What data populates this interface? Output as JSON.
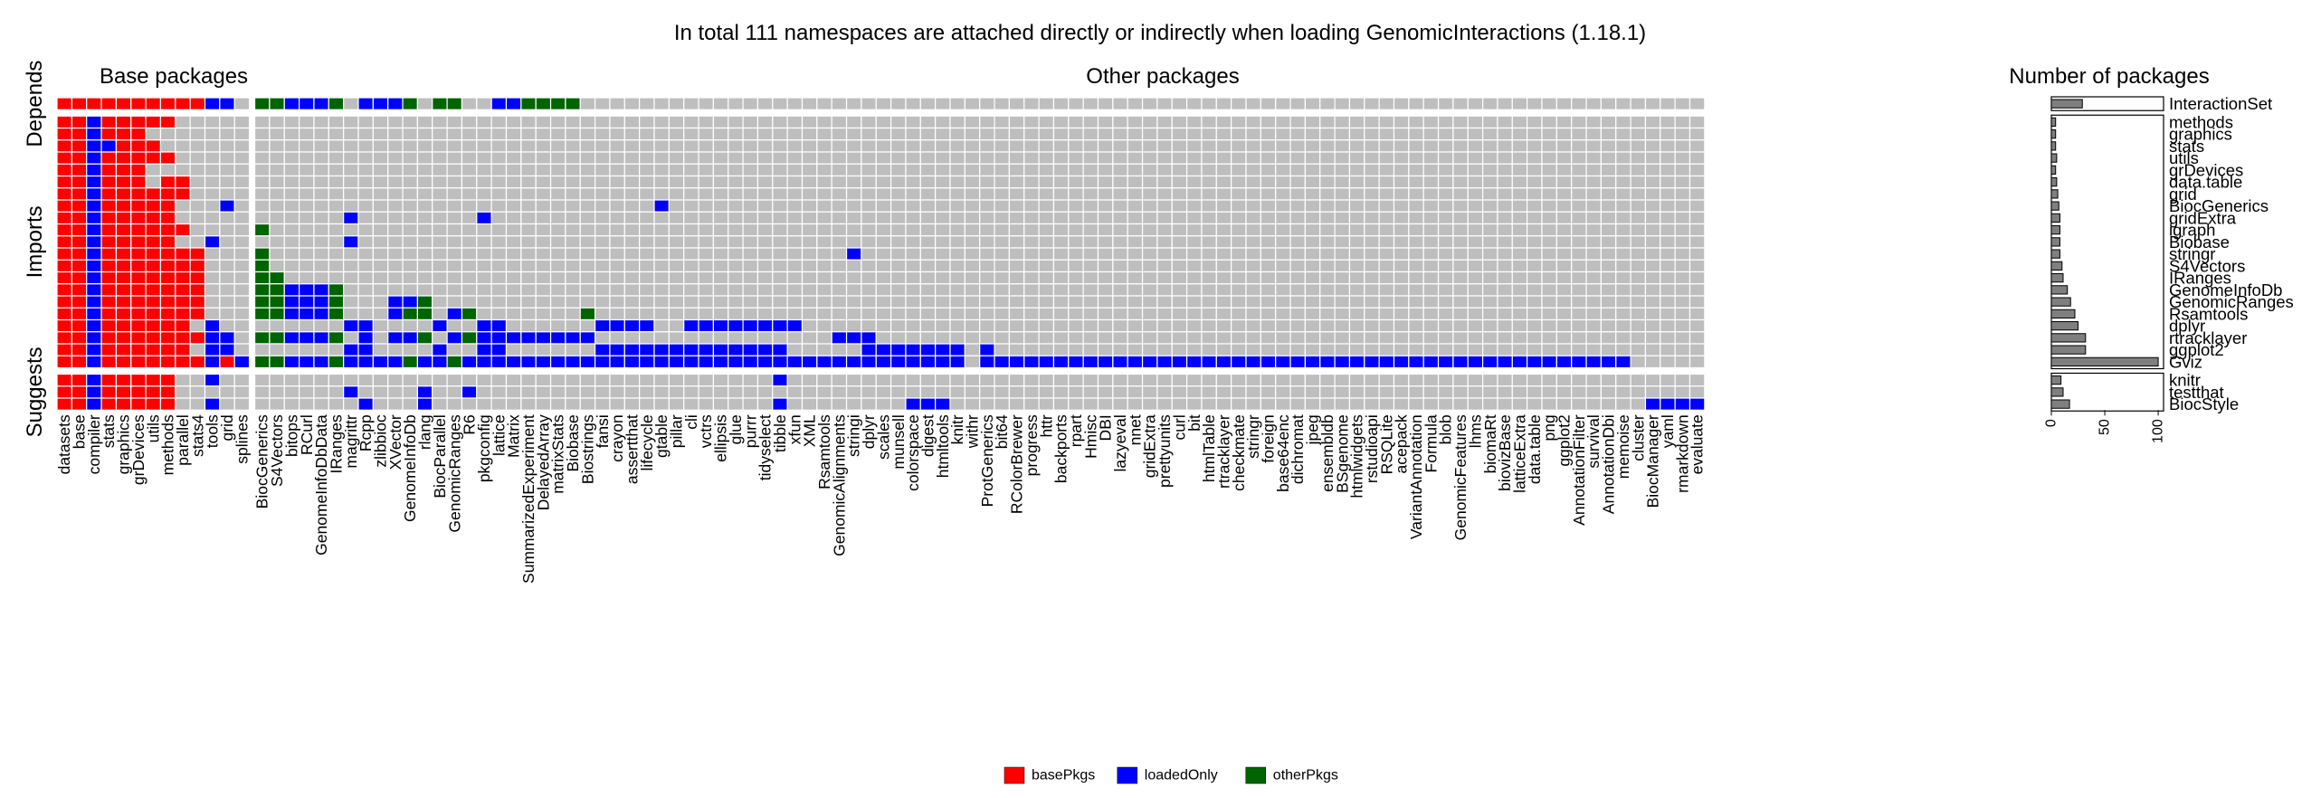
{
  "chart_data": {
    "type": "heatmap",
    "title": "In total 111 namespaces are attached directly or indirectly when loading GenomicInteractions (1.18.1)",
    "column_group_titles": [
      "Base packages",
      "Other packages"
    ],
    "row_groups": [
      "Depends",
      "Imports",
      "Suggests"
    ],
    "bar_panel_title": "Number of packages",
    "bar_axis_ticks": [
      0,
      50,
      100
    ],
    "bar_xlim": [
      0,
      105
    ],
    "colors": {
      "basePkgs": "#ff0000",
      "loadedOnly": "#0000ff",
      "otherPkgs": "#006400",
      "empty": "#bebebe",
      "bar": "#7f7f7f"
    },
    "legend": [
      {
        "key": "basePkgs",
        "label": "basePkgs"
      },
      {
        "key": "loadedOnly",
        "label": "loadedOnly"
      },
      {
        "key": "otherPkgs",
        "label": "otherPkgs"
      }
    ],
    "base_columns": [
      "datasets",
      "base",
      "compiler",
      "stats",
      "graphics",
      "grDevices",
      "utils",
      "methods",
      "parallel",
      "stats4",
      "tools",
      "grid",
      "splines"
    ],
    "other_columns": [
      "BiocGenerics",
      "S4Vectors",
      "bitops",
      "RCurl",
      "GenomeInfoDbData",
      "IRanges",
      "magrittr",
      "Rcpp",
      "zlibbioc",
      "XVector",
      "GenomeInfoDb",
      "rlang",
      "BiocParallel",
      "GenomicRanges",
      "R6",
      "pkgconfig",
      "lattice",
      "Matrix",
      "SummarizedExperiment",
      "DelayedArray",
      "matrixStats",
      "Biobase",
      "Biostrings",
      "fansi",
      "crayon",
      "assertthat",
      "lifecycle",
      "gtable",
      "pillar",
      "cli",
      "vctrs",
      "ellipsis",
      "glue",
      "purrr",
      "tidyselect",
      "tibble",
      "xfun",
      "XML",
      "Rsamtools",
      "GenomicAlignments",
      "stringi",
      "dplyr",
      "scales",
      "munsell",
      "colorspace",
      "digest",
      "htmltools",
      "knitr",
      "withr",
      "ProtGenerics",
      "bit64",
      "RColorBrewer",
      "progress",
      "httr",
      "backports",
      "rpart",
      "Hmisc",
      "DBI",
      "lazyeval",
      "nnet",
      "gridExtra",
      "prettyunits",
      "curl",
      "bit",
      "htmlTable",
      "rtracklayer",
      "checkmate",
      "stringr",
      "foreign",
      "base64enc",
      "dichromat",
      "jpeg",
      "ensembldb",
      "BSgenome",
      "htmlwidgets",
      "rstudioapi",
      "RSQLite",
      "acepack",
      "VariantAnnotation",
      "Formula",
      "blob",
      "GenomicFeatures",
      "lhms",
      "biomaRt",
      "biovizBase",
      "latticeExtra",
      "data.table",
      "png",
      "ggplot2",
      "AnnotationFilter",
      "survival",
      "AnnotationDbi",
      "memoise",
      "cluster",
      "BiocManager",
      "yaml",
      "rmarkdown",
      "evaluate"
    ],
    "rows": [
      {
        "name": "InteractionSet",
        "group": "Depends",
        "count": 29,
        "base": "RRRRRRRRRRBBE",
        "other": "GGBBBGEBBBGEGGEEBBGGGGEEEEEEEEEEEEEEEEEEEEEEEEEEEEEEEEEEEEEEEEEEEEEEEEEEEEEEEEEEEEEEEEEEEEEEEEEEEE"
      },
      {
        "name": "methods",
        "group": "Imports",
        "count": 4,
        "base": "RRBRRRRREEEEE",
        "other": ""
      },
      {
        "name": "graphics",
        "group": "Imports",
        "count": 4,
        "base": "RRBRRREEEEEEE",
        "other": ""
      },
      {
        "name": "stats",
        "group": "Imports",
        "count": 4,
        "base": "RRBBRRREEEEEE",
        "other": ""
      },
      {
        "name": "utils",
        "group": "Imports",
        "count": 5,
        "base": "RRBRRRRREEEEE",
        "other": ""
      },
      {
        "name": "grDevices",
        "group": "Imports",
        "count": 4,
        "base": "RRBRRREEEEEEE",
        "other": ""
      },
      {
        "name": "data.table",
        "group": "Imports",
        "count": 5,
        "base": "RRBRRRERREEEE",
        "other": ""
      },
      {
        "name": "grid",
        "group": "Imports",
        "count": 6,
        "base": "RRBRRRRRREEEE",
        "other": ""
      },
      {
        "name": "BiocGenerics",
        "group": "Imports",
        "count": 7,
        "base": "RRBRRRRREEEBE",
        "other": "EEEEEEEEEEEEEEEEEEEEEEEEEEEBE"
      },
      {
        "name": "gridExtra",
        "group": "Imports",
        "count": 8,
        "base": "RRBRRRRREEEEE",
        "other": "EEEEEEBEEEEEEEEB"
      },
      {
        "name": "igraph",
        "group": "Imports",
        "count": 8,
        "base": "RRBRRRRRREEEE",
        "other": "G"
      },
      {
        "name": "Biobase",
        "group": "Imports",
        "count": 8,
        "base": "RRBRRRRREEBEE",
        "other": "EEEEEEB"
      },
      {
        "name": "stringr",
        "group": "Imports",
        "count": 8,
        "base": "RRBRRRRRRREEE",
        "other": "GEEEEEEEEEEEEEEEEEEEEEEEEEEEEEEEEEEEEEEEB"
      },
      {
        "name": "S4Vectors",
        "group": "Imports",
        "count": 10,
        "base": "RRBRRRRRRREEE",
        "other": "G"
      },
      {
        "name": "IRanges",
        "group": "Imports",
        "count": 11,
        "base": "RRBRRRRRRREEE",
        "other": "GG"
      },
      {
        "name": "GenomeInfoDb",
        "group": "Imports",
        "count": 15,
        "base": "RRBRRRRRRREEE",
        "other": "GGBBBG"
      },
      {
        "name": "GenomicRanges",
        "group": "Imports",
        "count": 18,
        "base": "RRBRRRRRRREEE",
        "other": "GGBBBGEEEBBG"
      },
      {
        "name": "Rsamtools",
        "group": "Imports",
        "count": 22,
        "base": "RRBRRRRRRREEE",
        "other": "GGBBBGEEEBGGEBGEEEEEEEG"
      },
      {
        "name": "dplyr",
        "group": "Imports",
        "count": 25,
        "base": "RRBRRRRRREBEE",
        "other": "EEEEEEBBEEEEBEEBBEEEEEEBBBBEEBBBBBBBB"
      },
      {
        "name": "rtracklayer",
        "group": "Imports",
        "count": 32,
        "base": "RRBRRRRRRRBBE",
        "other": "GGBBBGEBEBBGEBGBBBBBBBBEEEEEEEEEEEEEEEEBBB"
      },
      {
        "name": "ggplot2",
        "group": "Imports",
        "count": 32,
        "base": "RRBRRRRRREBBE",
        "other": "EEEEEEBBEEEEBEEBBEEEEEEBBBBBBBBBBBBBEEEEEBBBBBBBEB"
      },
      {
        "name": "Gviz",
        "group": "Imports",
        "count": 100,
        "base": "RRBRRRRRRRBRB",
        "other": "GGBBBGBBBBGBBGBBBBBBBBBBBBBBBBBBBBBBBBBBBBBBBBBBEBBBBBBBBBBBBBBBBBBBBBBBBBBBBBBBBBBBBBBBBBBBB"
      },
      {
        "name": "knitr",
        "group": "Suggests",
        "count": 9,
        "base": "RRBRRRRREEBEE",
        "other": "EEEEEEEEEEEEEEEEEEEEEEEEEEEEEEEEEEEB"
      },
      {
        "name": "testthat",
        "group": "Suggests",
        "count": 11,
        "base": "RRBRRRRREEEEE",
        "other": "EEEEEEBEEEEBEEB"
      },
      {
        "name": "BiocStyle",
        "group": "Suggests",
        "count": 17,
        "base": "RRBRRRRREEBEE",
        "other": "EEEEEEEBEEEBEEEEEEEEEEEEEEEEEEEEEEEBEEEEEEEEBBBEEEEEEEEEEEEEEEEEEEEEEEEEEEEEEEEEEEEEEEEEEEEEEEBBBB"
      }
    ]
  }
}
